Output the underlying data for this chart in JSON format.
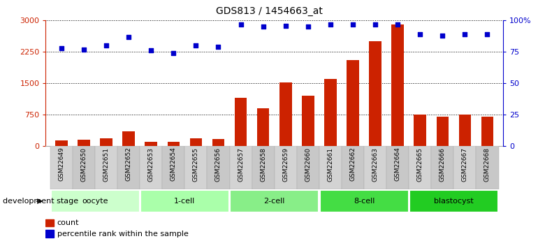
{
  "title": "GDS813 / 1454663_at",
  "samples": [
    "GSM22649",
    "GSM22650",
    "GSM22651",
    "GSM22652",
    "GSM22653",
    "GSM22654",
    "GSM22655",
    "GSM22656",
    "GSM22657",
    "GSM22658",
    "GSM22659",
    "GSM22660",
    "GSM22661",
    "GSM22662",
    "GSM22663",
    "GSM22664",
    "GSM22665",
    "GSM22666",
    "GSM22667",
    "GSM22668"
  ],
  "counts": [
    130,
    140,
    175,
    340,
    90,
    100,
    175,
    155,
    1150,
    900,
    1520,
    1200,
    1600,
    2050,
    2500,
    2900,
    750,
    700,
    750,
    700
  ],
  "percentile": [
    78,
    77,
    80,
    87,
    76,
    74,
    80,
    79,
    97,
    95,
    96,
    95,
    97,
    97,
    97,
    97,
    89,
    88,
    89,
    89
  ],
  "groups": [
    {
      "name": "oocyte",
      "start": 0,
      "end": 3,
      "color": "#ccffcc"
    },
    {
      "name": "1-cell",
      "start": 4,
      "end": 7,
      "color": "#aaffaa"
    },
    {
      "name": "2-cell",
      "start": 8,
      "end": 11,
      "color": "#88ee88"
    },
    {
      "name": "8-cell",
      "start": 12,
      "end": 15,
      "color": "#44dd44"
    },
    {
      "name": "blastocyst",
      "start": 16,
      "end": 19,
      "color": "#22cc22"
    }
  ],
  "bar_color": "#cc2200",
  "dot_color": "#0000cc",
  "left_axis_color": "#cc2200",
  "right_axis_color": "#0000cc",
  "left_ylim": [
    0,
    3000
  ],
  "right_ylim": [
    0,
    100
  ],
  "left_yticks": [
    0,
    750,
    1500,
    2250,
    3000
  ],
  "right_yticks": [
    0,
    25,
    50,
    75,
    100
  ],
  "right_yticklabels": [
    "0",
    "25",
    "50",
    "75",
    "100%"
  ],
  "bg_color": "#ffffff",
  "grid_color": "#000000",
  "xlabel_dev": "development stage",
  "legend_count": "count",
  "legend_percentile": "percentile rank within the sample",
  "group_label_color": "#000000",
  "tick_label_size": 6.5,
  "bar_width": 0.55,
  "xtick_bg": "#d3d3d3"
}
